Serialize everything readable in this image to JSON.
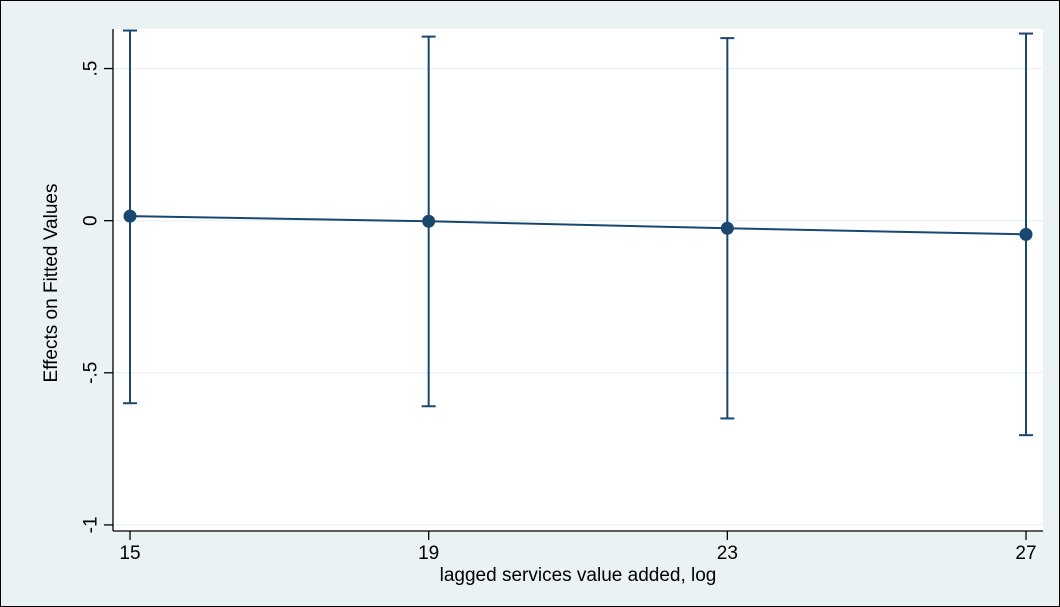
{
  "chart_data": {
    "type": "line",
    "title": "",
    "xlabel": "lagged services value added, log",
    "ylabel": "Effects on Fitted Values",
    "x": [
      15,
      19,
      23,
      27
    ],
    "xticks": [
      "15",
      "19",
      "23",
      "27"
    ],
    "xlim": [
      15,
      27
    ],
    "yticks": [
      0.5,
      0,
      -0.5,
      -1
    ],
    "ytick_labels": [
      ".5",
      "0",
      "-.5",
      "-1"
    ],
    "ylim": [
      -1.02,
      0.63
    ],
    "grid": true,
    "series": [
      {
        "values": [
          0.015,
          -0.002,
          -0.025,
          -0.045
        ],
        "ci_upper": [
          0.625,
          0.605,
          0.6,
          0.615
        ],
        "ci_lower": [
          -0.6,
          -0.61,
          -0.65,
          -0.705
        ]
      }
    ],
    "colors": {
      "series": "#1a476f",
      "plot_background": "#ffffff",
      "figure_background": "#eaf2f3",
      "grid": "#eaf2f3",
      "axis": "#000000"
    }
  }
}
